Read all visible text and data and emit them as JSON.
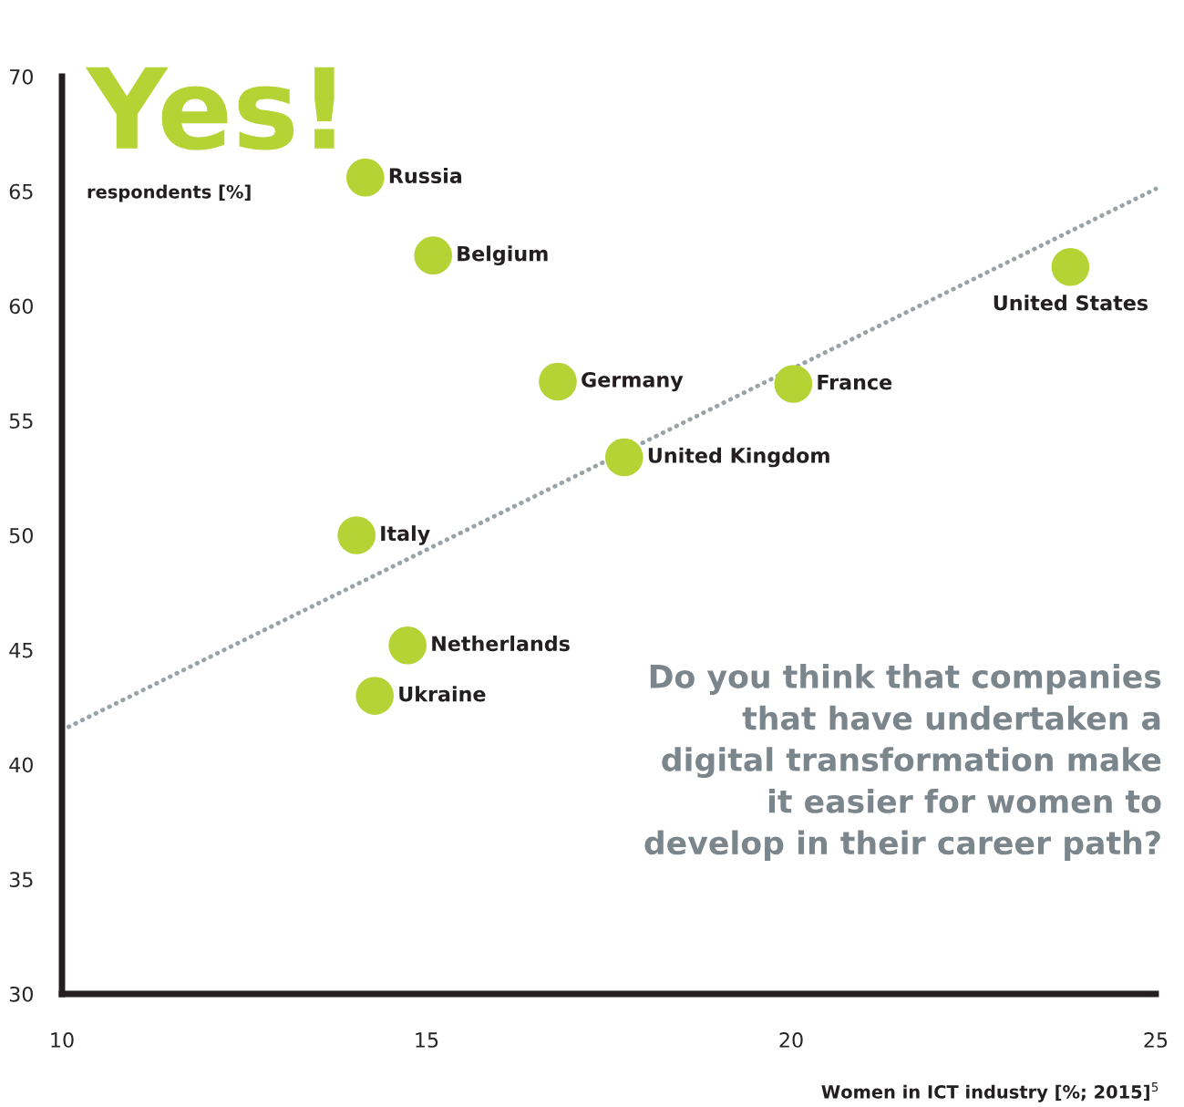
{
  "chart_data": {
    "type": "scatter",
    "title": "Yes!",
    "ylabel": "respondents [%]",
    "xlabel": "Women in ICT industry [%; 2015]$^{5}$",
    "annotations": [
      "Do you think that companies\nthat have undertaken a\ndigital transformation make\nit easier for women to\ndevelop in their career path?"
    ],
    "xlim": [
      10,
      25
    ],
    "xticks": [
      10,
      15,
      20,
      25
    ],
    "ylim": [
      30,
      70
    ],
    "yticks": [
      30,
      35,
      40,
      45,
      50,
      55,
      60,
      65,
      70
    ],
    "grid": false,
    "marker": "circle",
    "series": [
      {
        "name": "Russia",
        "color": "#b5d334",
        "x": [
          14.16
        ],
        "values": [
          65.6
        ]
      },
      {
        "name": "Belgium",
        "color": "#b5d334",
        "x": [
          15.09
        ],
        "values": [
          62.2
        ]
      },
      {
        "name": "United States",
        "color": "#b5d334",
        "x": [
          23.83
        ],
        "values": [
          61.7
        ]
      },
      {
        "name": "Germany",
        "color": "#b5d334",
        "x": [
          16.8
        ],
        "values": [
          56.7
        ]
      },
      {
        "name": "France",
        "color": "#b5d334",
        "x": [
          20.03
        ],
        "values": [
          56.6
        ]
      },
      {
        "name": "United Kingdom",
        "color": "#b5d334",
        "x": [
          17.71
        ],
        "values": [
          53.4
        ]
      },
      {
        "name": "Italy",
        "color": "#b5d334",
        "x": [
          14.04
        ],
        "values": [
          50.0
        ]
      },
      {
        "name": "Netherlands",
        "color": "#b5d334",
        "x": [
          14.74
        ],
        "values": [
          45.2
        ]
      },
      {
        "name": "Ukraine",
        "color": "#b5d334",
        "x": [
          14.29
        ],
        "values": [
          43.0
        ]
      },
      {
        "type": "line",
        "color": "#9aa3a8",
        "x": [
          10,
          25
        ],
        "values": [
          41.5,
          65.1
        ],
        "line_style": "dotted",
        "marker": "none"
      }
    ]
  }
}
